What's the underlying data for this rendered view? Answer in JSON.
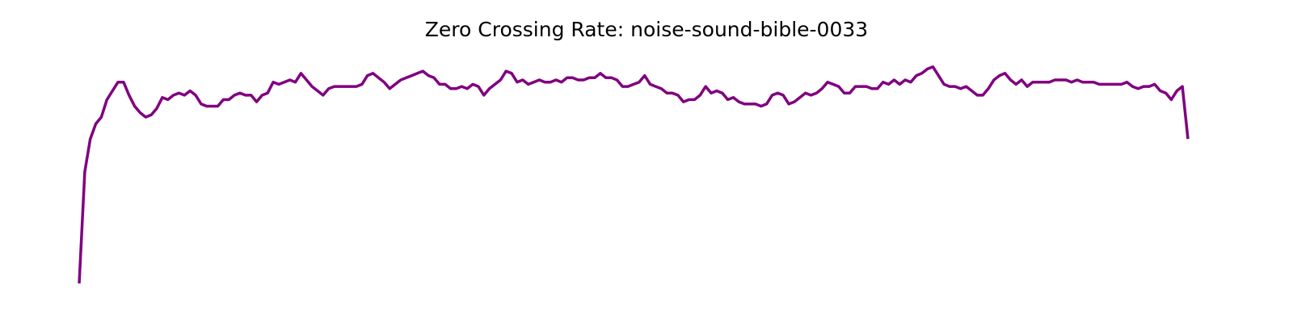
{
  "chart_data": {
    "type": "line",
    "title": "Zero Crossing Rate: noise-sound-bible-0033",
    "xlabel": "",
    "ylabel": "",
    "axes_visible": false,
    "grid": false,
    "line_color": "#800080",
    "ylim": [
      0,
      1
    ],
    "series": [
      {
        "values": [
          0.0,
          0.51,
          0.66,
          0.73,
          0.76,
          0.84,
          0.88,
          0.92,
          0.92,
          0.86,
          0.81,
          0.78,
          0.76,
          0.77,
          0.8,
          0.85,
          0.84,
          0.86,
          0.87,
          0.86,
          0.88,
          0.86,
          0.82,
          0.81,
          0.81,
          0.81,
          0.84,
          0.84,
          0.86,
          0.87,
          0.86,
          0.86,
          0.83,
          0.86,
          0.87,
          0.92,
          0.91,
          0.92,
          0.93,
          0.92,
          0.96,
          0.93,
          0.9,
          0.88,
          0.86,
          0.89,
          0.9,
          0.9,
          0.9,
          0.9,
          0.9,
          0.91,
          0.95,
          0.96,
          0.94,
          0.92,
          0.89,
          0.91,
          0.93,
          0.94,
          0.95,
          0.96,
          0.97,
          0.95,
          0.94,
          0.91,
          0.91,
          0.89,
          0.89,
          0.9,
          0.89,
          0.91,
          0.9,
          0.86,
          0.89,
          0.91,
          0.93,
          0.97,
          0.96,
          0.92,
          0.93,
          0.91,
          0.92,
          0.93,
          0.92,
          0.92,
          0.93,
          0.92,
          0.94,
          0.94,
          0.93,
          0.93,
          0.94,
          0.94,
          0.96,
          0.94,
          0.94,
          0.93,
          0.9,
          0.9,
          0.91,
          0.92,
          0.95,
          0.91,
          0.9,
          0.89,
          0.87,
          0.87,
          0.86,
          0.83,
          0.84,
          0.84,
          0.86,
          0.9,
          0.87,
          0.88,
          0.87,
          0.84,
          0.85,
          0.83,
          0.82,
          0.82,
          0.82,
          0.81,
          0.82,
          0.86,
          0.87,
          0.86,
          0.82,
          0.83,
          0.85,
          0.87,
          0.86,
          0.87,
          0.89,
          0.92,
          0.91,
          0.9,
          0.87,
          0.87,
          0.9,
          0.9,
          0.9,
          0.89,
          0.89,
          0.92,
          0.91,
          0.93,
          0.91,
          0.93,
          0.92,
          0.95,
          0.96,
          0.98,
          0.99,
          0.95,
          0.91,
          0.9,
          0.9,
          0.89,
          0.9,
          0.88,
          0.86,
          0.86,
          0.89,
          0.93,
          0.95,
          0.96,
          0.93,
          0.91,
          0.93,
          0.9,
          0.92,
          0.92,
          0.92,
          0.92,
          0.93,
          0.93,
          0.93,
          0.92,
          0.93,
          0.92,
          0.92,
          0.92,
          0.91,
          0.91,
          0.91,
          0.91,
          0.91,
          0.92,
          0.9,
          0.89,
          0.9,
          0.9,
          0.91,
          0.88,
          0.87,
          0.84,
          0.88,
          0.9,
          0.66
        ]
      }
    ]
  }
}
